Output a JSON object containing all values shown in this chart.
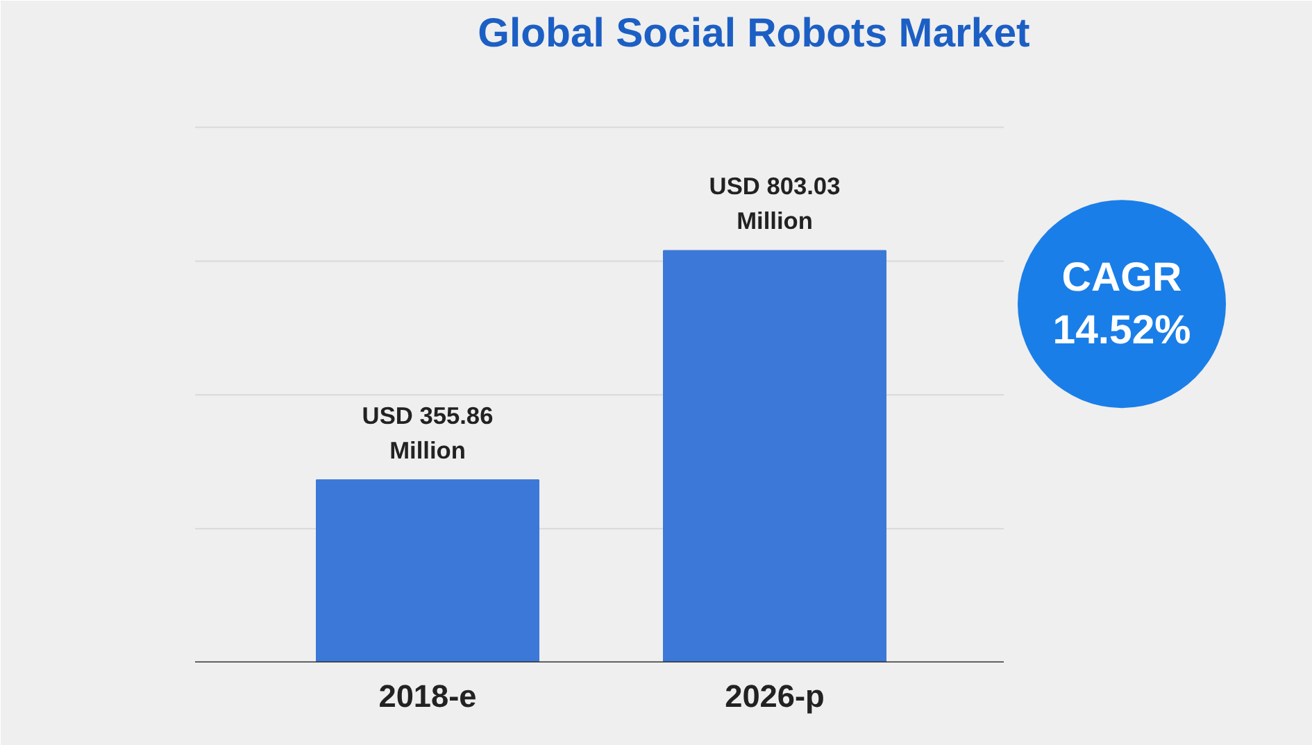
{
  "chart_data": {
    "type": "bar",
    "title": "Global Social Robots Market",
    "categories": [
      "2018-e",
      "2026-p"
    ],
    "values": [
      355.86,
      803.03
    ],
    "value_labels": [
      "USD 355.86\nMillion",
      "USD 803.03\nMillion"
    ],
    "color": "#3c78d8",
    "grid": true,
    "annotations": [
      "CAGR\n14.52%"
    ]
  }
}
